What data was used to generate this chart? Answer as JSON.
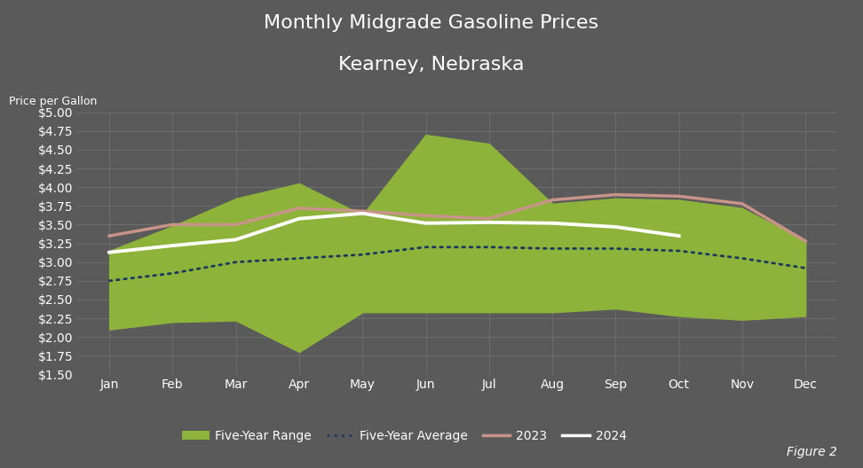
{
  "title_line1": "Monthly Midgrade Gasoline Prices",
  "title_line2": "Kearney, Nebraska",
  "ylabel": "Price per Gallon",
  "figure_label": "Figure 2",
  "months": [
    "Jan",
    "Feb",
    "Mar",
    "Apr",
    "May",
    "Jun",
    "Jul",
    "Aug",
    "Sep",
    "Oct",
    "Nov",
    "Dec"
  ],
  "ylim": [
    1.5,
    5.0
  ],
  "yticks": [
    1.5,
    1.75,
    2.0,
    2.25,
    2.5,
    2.75,
    3.0,
    3.25,
    3.5,
    3.75,
    4.0,
    4.25,
    4.5,
    4.75,
    5.0
  ],
  "five_year_upper": [
    3.15,
    3.48,
    3.85,
    4.05,
    3.63,
    4.7,
    4.58,
    3.78,
    3.85,
    3.83,
    3.72,
    3.28
  ],
  "five_year_lower": [
    2.1,
    2.2,
    2.22,
    1.8,
    2.33,
    2.33,
    2.33,
    2.33,
    2.38,
    2.28,
    2.23,
    2.28
  ],
  "five_year_avg": [
    2.75,
    2.85,
    3.0,
    3.05,
    3.1,
    3.2,
    3.2,
    3.18,
    3.18,
    3.15,
    3.05,
    2.92
  ],
  "line_2023": [
    3.35,
    3.5,
    3.5,
    3.72,
    3.68,
    3.62,
    3.58,
    3.83,
    3.9,
    3.88,
    3.78,
    3.28
  ],
  "line_2024": [
    3.13,
    3.22,
    3.3,
    3.58,
    3.65,
    3.52,
    3.53,
    3.52,
    3.47,
    3.35,
    null,
    null
  ],
  "bg_color": "#5a5a5a",
  "plot_bg_color": "#5a5a5a",
  "grid_color": "#6e6e6e",
  "fill_color": "#8DB33A",
  "fill_alpha": 1.0,
  "avg_color": "#1C3A5E",
  "line_2023_color": "#C8948A",
  "line_2024_color": "#FFFFFF",
  "title_color": "#FFFFFF",
  "label_color": "#FFFFFF",
  "tick_color": "#FFFFFF",
  "legend_bg": "#5a5a5a",
  "title_fontsize": 16,
  "tick_fontsize": 10,
  "ylabel_fontsize": 9
}
